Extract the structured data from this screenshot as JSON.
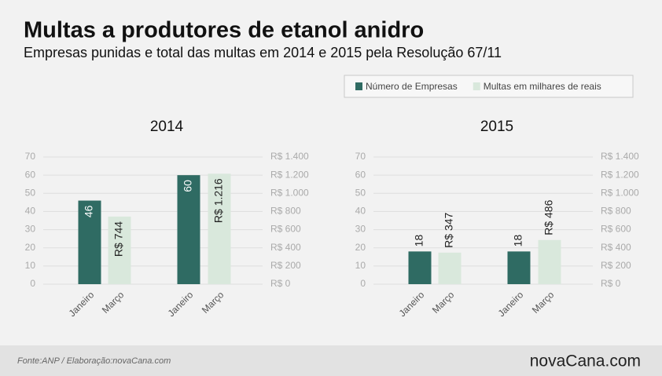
{
  "title": "Multas a produtores de etanol anidro",
  "subtitle": "Empresas punidas e total das multas em 2014 e 2015 pela Resolução 67/11",
  "footer": {
    "source": "Fonte:ANP / Elaboração:novaCana.com",
    "logo": "novaCana.com"
  },
  "chart_data": [
    {
      "type": "bar",
      "title": "2014",
      "categories": [
        "Janeiro",
        "Março",
        "Janeiro",
        "Março"
      ],
      "series": [
        {
          "name": "Número de Empresas",
          "color": "#2f6b63",
          "values": [
            46,
            null,
            60,
            null
          ],
          "value_labels": [
            "46",
            null,
            "60",
            null
          ]
        },
        {
          "name": "Multas em milhares de reais",
          "color": "#d9e8dc",
          "axis": "y2",
          "values": [
            null,
            744,
            null,
            1216
          ],
          "value_labels": [
            null,
            "R$ 744",
            null,
            "R$ 1.216"
          ]
        }
      ],
      "ylim": [
        0,
        70
      ],
      "yticks": [
        0,
        10,
        20,
        30,
        40,
        50,
        60,
        70
      ],
      "y2lim": [
        0,
        1400
      ],
      "y2ticks": [
        {
          "value": 0,
          "label": "R$ 0"
        },
        {
          "value": 200,
          "label": "R$ 200"
        },
        {
          "value": 400,
          "label": "R$ 400"
        },
        {
          "value": 600,
          "label": "R$ 600"
        },
        {
          "value": 800,
          "label": "R$ 800"
        },
        {
          "value": 1000,
          "label": "R$ 1.000"
        },
        {
          "value": 1200,
          "label": "R$ 1.200"
        },
        {
          "value": 1400,
          "label": "R$ 1.400"
        }
      ],
      "grid": true
    },
    {
      "type": "bar",
      "title": "2015",
      "categories": [
        "Janeiro",
        "Março",
        "Janeiro",
        "Março"
      ],
      "series": [
        {
          "name": "Número de Empresas",
          "color": "#2f6b63",
          "values": [
            18,
            null,
            18,
            null
          ],
          "value_labels": [
            "18",
            null,
            "18",
            null
          ]
        },
        {
          "name": "Multas em milhares de reais",
          "color": "#d9e8dc",
          "axis": "y2",
          "values": [
            null,
            347,
            null,
            486
          ],
          "value_labels": [
            null,
            "R$ 347",
            null,
            "R$ 486"
          ]
        }
      ],
      "ylim": [
        0,
        70
      ],
      "yticks": [
        0,
        10,
        20,
        30,
        40,
        50,
        60,
        70
      ],
      "y2lim": [
        0,
        1400
      ],
      "y2ticks": [
        {
          "value": 0,
          "label": "R$ 0"
        },
        {
          "value": 200,
          "label": "R$ 200"
        },
        {
          "value": 400,
          "label": "R$ 400"
        },
        {
          "value": 600,
          "label": "R$ 600"
        },
        {
          "value": 800,
          "label": "R$ 800"
        },
        {
          "value": 1000,
          "label": "R$ 1.000"
        },
        {
          "value": 1200,
          "label": "R$ 1.200"
        },
        {
          "value": 1400,
          "label": "R$ 1.400"
        }
      ],
      "grid": true
    }
  ]
}
